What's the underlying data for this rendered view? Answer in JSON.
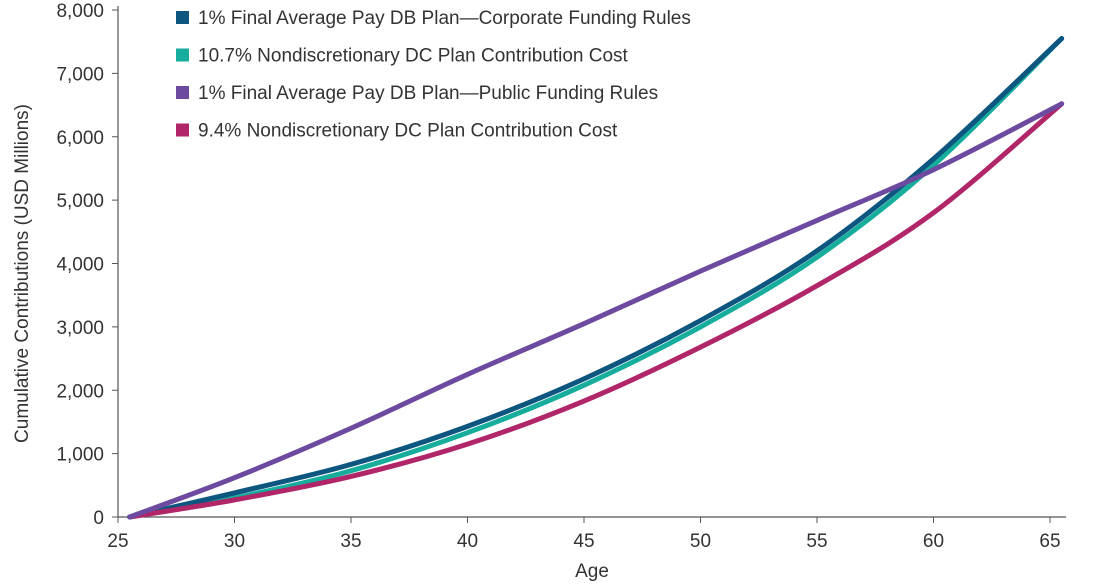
{
  "chart_data": {
    "type": "line",
    "xlabel": "Age",
    "ylabel": "Cumulative Contributions (USD Millions)",
    "xlim": [
      25,
      65.5
    ],
    "ylim": [
      0,
      8000
    ],
    "x_ticks": [
      25,
      30,
      35,
      40,
      45,
      50,
      55,
      60,
      65
    ],
    "y_ticks": [
      0,
      1000,
      2000,
      3000,
      4000,
      5000,
      6000,
      7000,
      8000
    ],
    "y_tick_labels": [
      "0",
      "1,000",
      "2,000",
      "3,000",
      "4,000",
      "5,000",
      "6,000",
      "7,000",
      "8,000"
    ],
    "grid": false,
    "legend_position": "top-left",
    "x": [
      25.5,
      30,
      35,
      40,
      45,
      50,
      55,
      60,
      65.5
    ],
    "series": [
      {
        "name": "1% Final Average Pay DB Plan—Corporate Funding Rules",
        "color": "#0d5680",
        "values": [
          0,
          380,
          830,
          1430,
          2180,
          3100,
          4200,
          5650,
          7550
        ]
      },
      {
        "name": "10.7% Nondiscretionary DC Plan Contribution Cost",
        "color": "#16ad9c",
        "values": [
          0,
          300,
          730,
          1330,
          2080,
          3000,
          4100,
          5550,
          7550
        ]
      },
      {
        "name": "1% Final Average Pay DB Plan—Public Funding Rules",
        "color": "#6c4aa0",
        "values": [
          0,
          620,
          1400,
          2250,
          3050,
          3880,
          4680,
          5480,
          6520
        ]
      },
      {
        "name": "9.4% Nondiscretionary DC Plan Contribution Cost",
        "color": "#b02669",
        "values": [
          0,
          270,
          640,
          1150,
          1830,
          2680,
          3650,
          4800,
          6520
        ]
      }
    ]
  }
}
